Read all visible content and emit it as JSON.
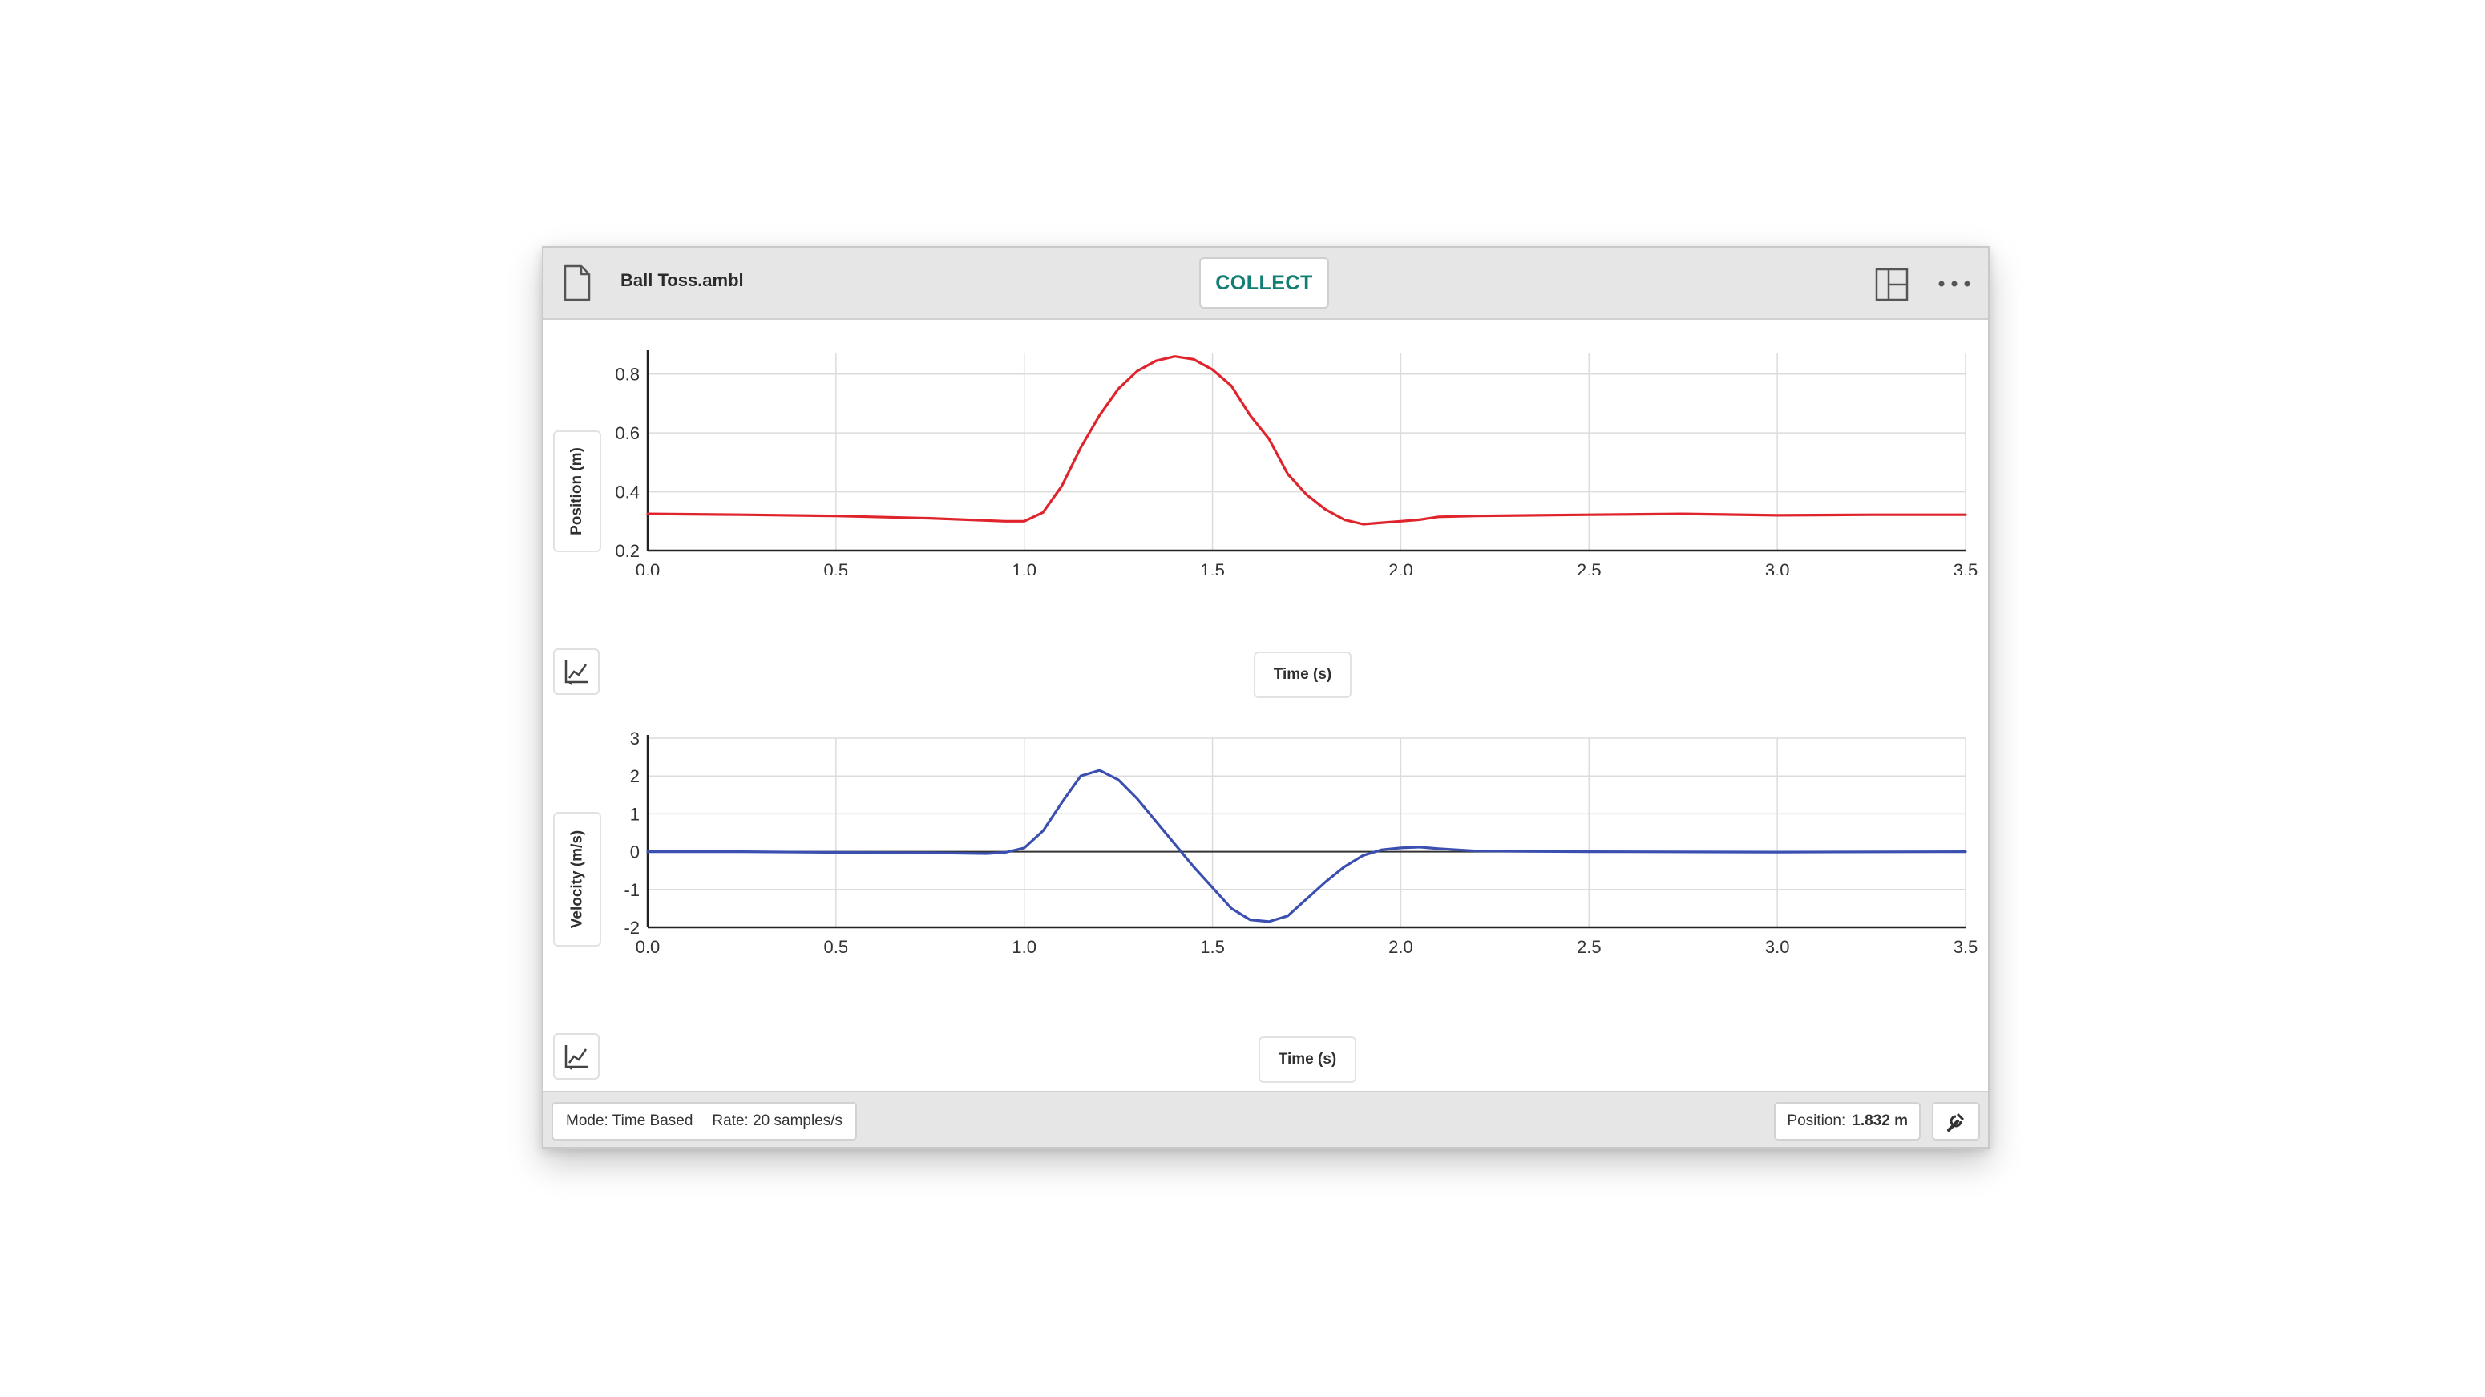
{
  "window": {
    "file_name": "Ball Toss.ambl",
    "collect_label": "COLLECT"
  },
  "icons": {
    "file": "file-icon",
    "layout": "layout-icon",
    "more": "more-icon",
    "graph_tool": "graph-tool-icon",
    "settings": "wrench-icon"
  },
  "colors": {
    "position_line": "#e0242c",
    "velocity_line": "#3a4fb0",
    "collect_text": "#137e74"
  },
  "status_bar": {
    "mode_label": "Mode: Time Based",
    "rate_label": "Rate: 20 samples/s",
    "readout_label": "Position:",
    "readout_value": "1.832 m"
  },
  "chart_data": [
    {
      "type": "line",
      "xlabel": "Time (s)",
      "ylabel": "Position (m)",
      "xlim": [
        0,
        3.5
      ],
      "ylim": [
        0.2,
        0.87
      ],
      "x_ticks": [
        "0.0",
        "0.5",
        "1.0",
        "1.5",
        "2.0",
        "2.5",
        "3.0",
        "3.5"
      ],
      "y_ticks": [
        "0.2",
        "0.4",
        "0.6",
        "0.8"
      ],
      "grid": true,
      "series": [
        {
          "color": "#e0242c",
          "points": [
            [
              0,
              0.325
            ],
            [
              0.25,
              0.322
            ],
            [
              0.5,
              0.318
            ],
            [
              0.75,
              0.31
            ],
            [
              0.95,
              0.3
            ],
            [
              1.0,
              0.3
            ],
            [
              1.05,
              0.33
            ],
            [
              1.1,
              0.42
            ],
            [
              1.15,
              0.55
            ],
            [
              1.2,
              0.66
            ],
            [
              1.25,
              0.75
            ],
            [
              1.3,
              0.81
            ],
            [
              1.35,
              0.845
            ],
            [
              1.4,
              0.86
            ],
            [
              1.45,
              0.85
            ],
            [
              1.5,
              0.815
            ],
            [
              1.55,
              0.76
            ],
            [
              1.6,
              0.66
            ],
            [
              1.65,
              0.58
            ],
            [
              1.7,
              0.46
            ],
            [
              1.75,
              0.39
            ],
            [
              1.8,
              0.34
            ],
            [
              1.85,
              0.305
            ],
            [
              1.9,
              0.29
            ],
            [
              1.95,
              0.295
            ],
            [
              2.0,
              0.3
            ],
            [
              2.05,
              0.305
            ],
            [
              2.1,
              0.315
            ],
            [
              2.2,
              0.318
            ],
            [
              2.5,
              0.322
            ],
            [
              2.75,
              0.325
            ],
            [
              3.0,
              0.32
            ],
            [
              3.25,
              0.322
            ],
            [
              3.5,
              0.322
            ]
          ]
        }
      ]
    },
    {
      "type": "line",
      "xlabel": "Time (s)",
      "ylabel": "Velocity (m/s)",
      "xlim": [
        0,
        3.5
      ],
      "ylim": [
        -2,
        3
      ],
      "x_ticks": [
        "0.0",
        "0.5",
        "1.0",
        "1.5",
        "2.0",
        "2.5",
        "3.0",
        "3.5"
      ],
      "y_ticks": [
        "-2",
        "-1",
        "0",
        "1",
        "2",
        "3"
      ],
      "grid": true,
      "zero_line": true,
      "series": [
        {
          "color": "#3a4fb0",
          "points": [
            [
              0,
              0.0
            ],
            [
              0.25,
              0.0
            ],
            [
              0.5,
              -0.02
            ],
            [
              0.75,
              -0.03
            ],
            [
              0.9,
              -0.05
            ],
            [
              0.95,
              -0.02
            ],
            [
              1.0,
              0.1
            ],
            [
              1.05,
              0.55
            ],
            [
              1.1,
              1.3
            ],
            [
              1.15,
              2.0
            ],
            [
              1.2,
              2.15
            ],
            [
              1.25,
              1.9
            ],
            [
              1.3,
              1.4
            ],
            [
              1.35,
              0.8
            ],
            [
              1.4,
              0.2
            ],
            [
              1.45,
              -0.4
            ],
            [
              1.5,
              -0.95
            ],
            [
              1.55,
              -1.5
            ],
            [
              1.6,
              -1.8
            ],
            [
              1.65,
              -1.85
            ],
            [
              1.7,
              -1.7
            ],
            [
              1.75,
              -1.25
            ],
            [
              1.8,
              -0.8
            ],
            [
              1.85,
              -0.4
            ],
            [
              1.9,
              -0.1
            ],
            [
              1.95,
              0.05
            ],
            [
              2.0,
              0.1
            ],
            [
              2.05,
              0.12
            ],
            [
              2.1,
              0.08
            ],
            [
              2.2,
              0.02
            ],
            [
              2.5,
              0.0
            ],
            [
              3.0,
              -0.01
            ],
            [
              3.5,
              0.0
            ]
          ]
        }
      ]
    }
  ]
}
